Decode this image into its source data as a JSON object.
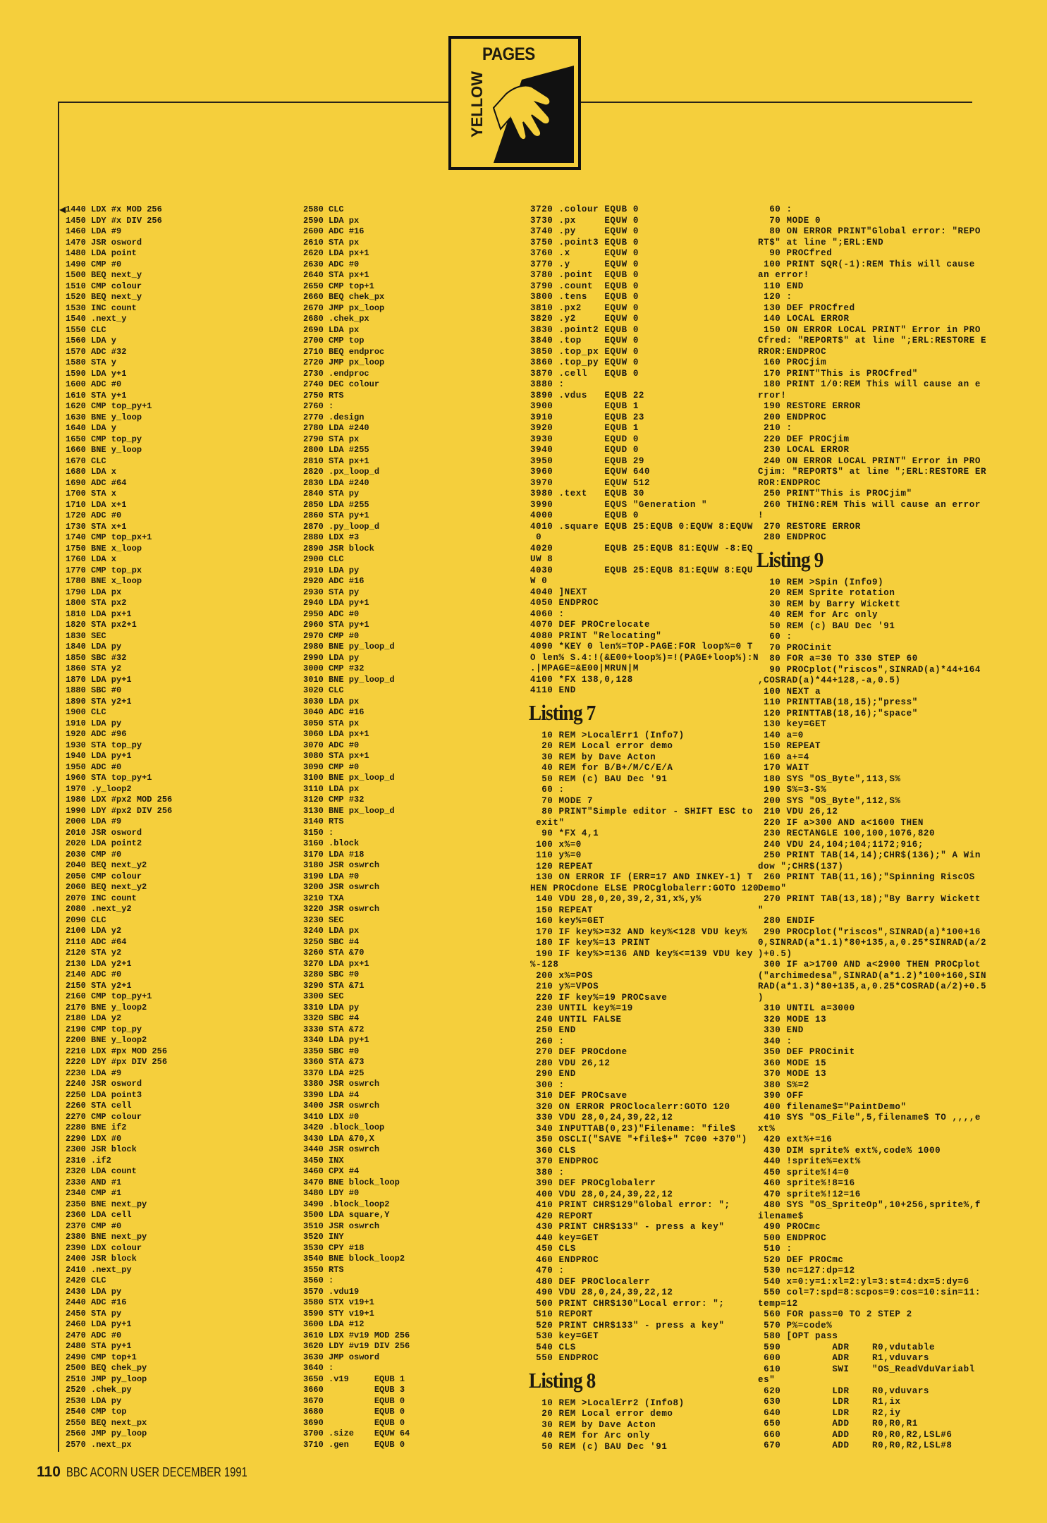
{
  "header": {
    "logo": {
      "word_top": "PAGES",
      "word_side": "YELLOW"
    }
  },
  "marker_icon": "left-pointing-triangle",
  "columns": [
    {
      "blocks": [
        {
          "heading": "",
          "lines": [
            "1440 LDX #x MOD 256",
            "1450 LDY #x DIV 256",
            "1460 LDA #9",
            "1470 JSR osword",
            "1480 LDA point",
            "1490 CMP #0",
            "1500 BEQ next_y",
            "1510 CMP colour",
            "1520 BEQ next_y",
            "1530 INC count",
            "1540 .next_y",
            "1550 CLC",
            "1560 LDA y",
            "1570 ADC #32",
            "1580 STA y",
            "1590 LDA y+1",
            "1600 ADC #0",
            "1610 STA y+1",
            "1620 CMP top_py+1",
            "1630 BNE y_loop",
            "1640 LDA y",
            "1650 CMP top_py",
            "1660 BNE y_loop",
            "1670 CLC",
            "1680 LDA x",
            "1690 ADC #64",
            "1700 STA x",
            "1710 LDA x+1",
            "1720 ADC #0",
            "1730 STA x+1",
            "1740 CMP top_px+1",
            "1750 BNE x_loop",
            "1760 LDA x",
            "1770 CMP top_px",
            "1780 BNE x_loop",
            "1790 LDA px",
            "1800 STA px2",
            "1810 LDA px+1",
            "1820 STA px2+1",
            "1830 SEC",
            "1840 LDA py",
            "1850 SBC #32",
            "1860 STA y2",
            "1870 LDA py+1",
            "1880 SBC #0",
            "1890 STA y2+1",
            "1900 CLC",
            "1910 LDA py",
            "1920 ADC #96",
            "1930 STA top_py",
            "1940 LDA py+1",
            "1950 ADC #0",
            "1960 STA top_py+1",
            "1970 .y_loop2",
            "1980 LDX #px2 MOD 256",
            "1990 LDY #px2 DIV 256",
            "2000 LDA #9",
            "2010 JSR osword",
            "2020 LDA point2",
            "2030 CMP #0",
            "2040 BEQ next_y2",
            "2050 CMP colour",
            "2060 BEQ next_y2",
            "2070 INC count",
            "2080 .next_y2",
            "2090 CLC",
            "2100 LDA y2",
            "2110 ADC #64",
            "2120 STA y2",
            "2130 LDA y2+1",
            "2140 ADC #0",
            "2150 STA y2+1",
            "2160 CMP top_py+1",
            "2170 BNE y_loop2",
            "2180 LDA y2",
            "2190 CMP top_py",
            "2200 BNE y_loop2",
            "2210 LDX #px MOD 256",
            "2220 LDY #px DIV 256",
            "2230 LDA #9",
            "2240 JSR osword",
            "2250 LDA point3",
            "2260 STA cell",
            "2270 CMP colour",
            "2280 BNE if2",
            "2290 LDX #0",
            "2300 JSR block",
            "2310 .if2",
            "2320 LDA count",
            "2330 AND #1",
            "2340 CMP #1",
            "2350 BNE next_py",
            "2360 LDA cell",
            "2370 CMP #0",
            "2380 BNE next_py",
            "2390 LDX colour",
            "2400 JSR block",
            "2410 .next_py",
            "2420 CLC",
            "2430 LDA py",
            "2440 ADC #16",
            "2450 STA py",
            "2460 LDA py+1",
            "2470 ADC #0",
            "2480 STA py+1",
            "2490 CMP top+1",
            "2500 BEQ chek_py",
            "2510 JMP py_loop",
            "2520 .chek_py",
            "2530 LDA py",
            "2540 CMP top",
            "2550 BEQ next_px",
            "2560 JMP py_loop",
            "2570 .next_px"
          ]
        }
      ]
    },
    {
      "blocks": [
        {
          "heading": "",
          "lines": [
            "2580 CLC",
            "2590 LDA px",
            "2600 ADC #16",
            "2610 STA px",
            "2620 LDA px+1",
            "2630 ADC #0",
            "2640 STA px+1",
            "2650 CMP top+1",
            "2660 BEQ chek_px",
            "2670 JMP px_loop",
            "2680 .chek_px",
            "2690 LDA px",
            "2700 CMP top",
            "2710 BEQ endproc",
            "2720 JMP px_loop",
            "2730 .endproc",
            "2740 DEC colour",
            "2750 RTS",
            "2760 :",
            "2770 .design",
            "2780 LDA #240",
            "2790 STA px",
            "2800 LDA #255",
            "2810 STA px+1",
            "2820 .px_loop_d",
            "2830 LDA #240",
            "2840 STA py",
            "2850 LDA #255",
            "2860 STA py+1",
            "2870 .py_loop_d",
            "2880 LDX #3",
            "2890 JSR block",
            "2900 CLC",
            "2910 LDA py",
            "2920 ADC #16",
            "2930 STA py",
            "2940 LDA py+1",
            "2950 ADC #0",
            "2960 STA py+1",
            "2970 CMP #0",
            "2980 BNE py_loop_d",
            "2990 LDA py",
            "3000 CMP #32",
            "3010 BNE py_loop_d",
            "3020 CLC",
            "3030 LDA px",
            "3040 ADC #16",
            "3050 STA px",
            "3060 LDA px+1",
            "3070 ADC #0",
            "3080 STA px+1",
            "3090 CMP #0",
            "3100 BNE px_loop_d",
            "3110 LDA px",
            "3120 CMP #32",
            "3130 BNE px_loop_d",
            "3140 RTS",
            "3150 :",
            "3160 .block",
            "3170 LDA #18",
            "3180 JSR oswrch",
            "3190 LDA #0",
            "3200 JSR oswrch",
            "3210 TXA",
            "3220 JSR oswrch",
            "3230 SEC",
            "3240 LDA px",
            "3250 SBC #4",
            "3260 STA &70",
            "3270 LDA px+1",
            "3280 SBC #0",
            "3290 STA &71",
            "3300 SEC",
            "3310 LDA py",
            "3320 SBC #4",
            "3330 STA &72",
            "3340 LDA py+1",
            "3350 SBC #0",
            "3360 STA &73",
            "3370 LDA #25",
            "3380 JSR oswrch",
            "3390 LDA #4",
            "3400 JSR oswrch",
            "3410 LDX #0",
            "3420 .block_loop",
            "3430 LDA &70,X",
            "3440 JSR oswrch",
            "3450 INX",
            "3460 CPX #4",
            "3470 BNE block_loop",
            "3480 LDY #0",
            "3490 .block_loop2",
            "3500 LDA square,Y",
            "3510 JSR oswrch",
            "3520 INY",
            "3530 CPY #18",
            "3540 BNE block_loop2",
            "3550 RTS",
            "3560 :",
            "3570 .vdu19",
            "3580 STX v19+1",
            "3590 STY v19+1",
            "3600 LDA #12",
            "3610 LDX #v19 MOD 256",
            "3620 LDY #v19 DIV 256",
            "3630 JMP osword",
            "3640 :",
            "3650 .v19     EQUB 1",
            "3660          EQUB 3",
            "3670          EQUB 0",
            "3680          EQUB 0",
            "3690          EQUB 0",
            "3700 .size    EQUW 64",
            "3710 .gen     EQUB 0"
          ]
        }
      ]
    },
    {
      "blocks": [
        {
          "heading": "",
          "lines": [
            "3720 .colour EQUB 0",
            "3730 .px     EQUW 0",
            "3740 .py     EQUW 0",
            "3750 .point3 EQUB 0",
            "3760 .x      EQUW 0",
            "3770 .y      EQUW 0",
            "3780 .point  EQUB 0",
            "3790 .count  EQUB 0",
            "3800 .tens   EQUB 0",
            "3810 .px2    EQUW 0",
            "3820 .y2     EQUW 0",
            "3830 .point2 EQUB 0",
            "3840 .top    EQUW 0",
            "3850 .top_px EQUW 0",
            "3860 .top_py EQUW 0",
            "3870 .cell   EQUB 0",
            "3880 :",
            "3890 .vdus   EQUB 22",
            "3900         EQUB 1",
            "3910         EQUB 23",
            "3920         EQUB 1",
            "3930         EQUD 0",
            "3940         EQUD 0",
            "3950         EQUB 29",
            "3960         EQUW 640",
            "3970         EQUW 512",
            "3980 .text   EQUB 30",
            "3990         EQUS \"Generation \"",
            "4000         EQUB 0",
            "4010 .square EQUB 25:EQUB 0:EQUW 8:EQUW",
            " 0",
            "4020         EQUB 25:EQUB 81:EQUW -8:EQ",
            "UW 8",
            "4030         EQUB 25:EQUB 81:EQUW 8:EQU",
            "W 0",
            "4040 ]NEXT",
            "4050 ENDPROC",
            "4060 :",
            "4070 DEF PROCrelocate",
            "4080 PRINT \"Relocating\"",
            "4090 *KEY 0 len%=TOP-PAGE:FOR loop%=0 T",
            "O len% S.4:!(&E00+loop%)=!(PAGE+loop%):N",
            ".|MPAGE=&E00|MRUN|M",
            "4100 *FX 138,0,128",
            "4110 END"
          ]
        },
        {
          "heading": "Listing 7",
          "lines": [
            "  10 REM >LocalErr1 (Info7)",
            "  20 REM Local error demo",
            "  30 REM by Dave Acton",
            "  40 REM for B/B+/M/C/E/A",
            "  50 REM (c) BAU Dec '91",
            "  60 :",
            "  70 MODE 7",
            "  80 PRINT\"Simple editor - SHIFT ESC to",
            " exit\"",
            "  90 *FX 4,1",
            " 100 x%=0",
            " 110 y%=0",
            " 120 REPEAT",
            " 130 ON ERROR IF (ERR=17 AND INKEY-1) T",
            "HEN PROCdone ELSE PROCglobalerr:GOTO 120",
            " 140 VDU 28,0,20,39,2,31,x%,y%",
            " 150 REPEAT",
            " 160 key%=GET",
            " 170 IF key%>=32 AND key%<128 VDU key%",
            " 180 IF key%=13 PRINT",
            " 190 IF key%>=136 AND key%<=139 VDU key",
            "%-128",
            " 200 x%=POS",
            " 210 y%=VPOS",
            " 220 IF key%=19 PROCsave",
            " 230 UNTIL key%=19",
            " 240 UNTIL FALSE",
            " 250 END",
            " 260 :",
            " 270 DEF PROCdone",
            " 280 VDU 26,12",
            " 290 END",
            " 300 :",
            " 310 DEF PROCsave",
            " 320 ON ERROR PROClocalerr:GOTO 120",
            " 330 VDU 28,0,24,39,22,12",
            " 340 INPUTTAB(0,23)\"Filename: \"file$",
            " 350 OSCLI(\"SAVE \"+file$+\" 7C00 +370\")",
            " 360 CLS",
            " 370 ENDPROC",
            " 380 :",
            " 390 DEF PROCglobalerr",
            " 400 VDU 28,0,24,39,22,12",
            " 410 PRINT CHR$129\"Global error: \";",
            " 420 REPORT",
            " 430 PRINT CHR$133\" - press a key\"",
            " 440 key=GET",
            " 450 CLS",
            " 460 ENDPROC",
            " 470 :",
            " 480 DEF PROClocalerr",
            " 490 VDU 28,0,24,39,22,12",
            " 500 PRINT CHR$130\"Local error: \";",
            " 510 REPORT",
            " 520 PRINT CHR$133\" - press a key\"",
            " 530 key=GET",
            " 540 CLS",
            " 550 ENDPROC"
          ]
        },
        {
          "heading": "Listing 8",
          "lines": [
            "  10 REM >LocalErr2 (Info8)",
            "  20 REM Local error demo",
            "  30 REM by Dave Acton",
            "  40 REM for Arc only",
            "  50 REM (c) BAU Dec '91"
          ]
        }
      ]
    },
    {
      "blocks": [
        {
          "heading": "",
          "lines": [
            "  60 :",
            "  70 MODE 0",
            "  80 ON ERROR PRINT\"Global error: \"REPO",
            "RT$\" at line \";ERL:END",
            "  90 PROCfred",
            " 100 PRINT SQR(-1):REM This will cause",
            "an error!",
            " 110 END",
            " 120 :",
            " 130 DEF PROCfred",
            " 140 LOCAL ERROR",
            " 150 ON ERROR LOCAL PRINT\" Error in PRO",
            "Cfred: \"REPORT$\" at line \";ERL:RESTORE E",
            "RROR:ENDPROC",
            " 160 PROCjim",
            " 170 PRINT\"This is PROCfred\"",
            " 180 PRINT 1/0:REM This will cause an e",
            "rror!",
            " 190 RESTORE ERROR",
            " 200 ENDPROC",
            " 210 :",
            " 220 DEF PROCjim",
            " 230 LOCAL ERROR",
            " 240 ON ERROR LOCAL PRINT\" Error in PRO",
            "Cjim: \"REPORT$\" at line \";ERL:RESTORE ER",
            "ROR:ENDPROC",
            " 250 PRINT\"This is PROCjim\"",
            " 260 THING:REM This will cause an error",
            "!",
            " 270 RESTORE ERROR",
            " 280 ENDPROC"
          ]
        },
        {
          "heading": "Listing 9",
          "lines": [
            "  10 REM >Spin (Info9)",
            "  20 REM Sprite rotation",
            "  30 REM by Barry Wickett",
            "  40 REM for Arc only",
            "  50 REM (c) BAU Dec '91",
            "  60 :",
            "  70 PROCinit",
            "  80 FOR a=30 TO 330 STEP 60",
            "  90 PROCplot(\"riscos\",SINRAD(a)*44+164",
            ",COSRAD(a)*44+128,-a,0.5)",
            " 100 NEXT a",
            " 110 PRINTTAB(18,15);\"press\"",
            " 120 PRINTTAB(18,16);\"space\"",
            " 130 key=GET",
            " 140 a=0",
            " 150 REPEAT",
            " 160 a+=4",
            " 170 WAIT",
            " 180 SYS \"OS_Byte\",113,S%",
            " 190 S%=3-S%",
            " 200 SYS \"OS_Byte\",112,S%",
            " 210 VDU 26,12",
            " 220 IF a>300 AND a<1600 THEN",
            " 230 RECTANGLE 100,100,1076,820",
            " 240 VDU 24,104;104;1172;916;",
            " 250 PRINT TAB(14,14);CHR$(136);\" A Win",
            "dow \";CHR$(137)",
            " 260 PRINT TAB(11,16);\"Spinning RiscOS",
            "Demo\"",
            " 270 PRINT TAB(13,18);\"By Barry Wickett",
            "\"",
            " 280 ENDIF",
            " 290 PROCplot(\"riscos\",SINRAD(a)*100+16",
            "0,SINRAD(a*1.1)*80+135,a,0.25*SINRAD(a/2",
            ")+0.5)",
            " 300 IF a>1700 AND a<2900 THEN PROCplot",
            "(\"archimedesa\",SINRAD(a*1.2)*100+160,SIN",
            "RAD(a*1.3)*80+135,a,0.25*COSRAD(a/2)+0.5",
            ")",
            " 310 UNTIL a=3000",
            " 320 MODE 13",
            " 330 END",
            " 340 :",
            " 350 DEF PROCinit",
            " 360 MODE 15",
            " 370 MODE 13",
            " 380 S%=2",
            " 390 OFF",
            " 400 filename$=\"PaintDemo\"",
            " 410 SYS \"OS_File\",5,filename$ TO ,,,,e",
            "xt%",
            " 420 ext%+=16",
            " 430 DIM sprite% ext%,code% 1000",
            " 440 !sprite%=ext%",
            " 450 sprite%!4=0",
            " 460 sprite%!8=16",
            " 470 sprite%!12=16",
            " 480 SYS \"OS_SpriteOp\",10+256,sprite%,f",
            "ilename$",
            " 490 PROCmc",
            " 500 ENDPROC",
            " 510 :",
            " 520 DEF PROCmc",
            " 530 nc=127:dp=12",
            " 540 x=0:y=1:xl=2:yl=3:st=4:dx=5:dy=6",
            " 550 col=7:spd=8:scpos=9:cos=10:sin=11:",
            "temp=12",
            " 560 FOR pass=0 TO 2 STEP 2",
            " 570 P%=code%",
            " 580 [OPT pass",
            " 590         ADR    R0,vdutable",
            " 600         ADR    R1,vduvars",
            " 610         SWI    \"OS_ReadVduVariabl",
            "es\"",
            " 620         LDR    R0,vduvars",
            " 630         LDR    R1,ix",
            " 640         LDR    R2,iy",
            " 650         ADD    R0,R0,R1",
            " 660         ADD    R0,R0,R2,LSL#6",
            " 670         ADD    R0,R0,R2,LSL#8"
          ]
        }
      ]
    }
  ],
  "footer": {
    "page_number": "110",
    "magazine": "BBC ACORN USER DECEMBER 1991"
  },
  "colors": {
    "page": "#f5cf3c",
    "ink": "#1e1a10"
  }
}
